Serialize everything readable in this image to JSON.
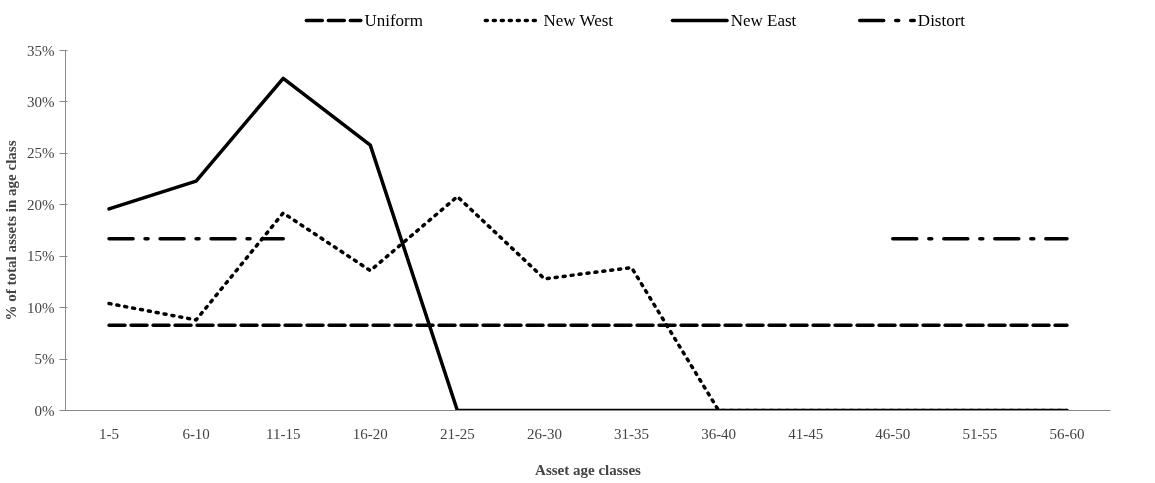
{
  "chart_data": {
    "type": "line",
    "xlabel": "Asset age classes",
    "ylabel": "% of total assets in age class",
    "categories": [
      "1-5",
      "6-10",
      "11-15",
      "16-20",
      "21-25",
      "26-30",
      "31-35",
      "36-40",
      "41-45",
      "46-50",
      "51-55",
      "56-60"
    ],
    "series": [
      {
        "name": "Uniform",
        "color": "#000000",
        "line_style": "dashed",
        "values": [
          8.3,
          8.3,
          8.3,
          8.3,
          8.3,
          8.3,
          8.3,
          8.3,
          8.3,
          8.3,
          8.3,
          8.3
        ]
      },
      {
        "name": "New West",
        "color": "#000000",
        "line_style": "dotted",
        "values": [
          10.4,
          8.8,
          19.2,
          13.6,
          20.8,
          12.8,
          13.9,
          0,
          0,
          0,
          0,
          0
        ]
      },
      {
        "name": "New East",
        "color": "#000000",
        "line_style": "solid",
        "values": [
          19.6,
          22.3,
          32.3,
          25.8,
          0,
          0,
          0,
          0,
          0,
          0,
          0,
          0
        ]
      },
      {
        "name": "Distort",
        "color": "#000000",
        "line_style": "dashdot",
        "values": [
          16.7,
          16.7,
          16.7,
          null,
          null,
          null,
          null,
          null,
          null,
          16.7,
          16.7,
          16.7
        ]
      }
    ],
    "ylim": [
      0,
      35
    ],
    "yticks": [
      {
        "value": 0,
        "label": "0%"
      },
      {
        "value": 5,
        "label": "5%"
      },
      {
        "value": 10,
        "label": "10%"
      },
      {
        "value": 15,
        "label": "15%"
      },
      {
        "value": 20,
        "label": "20%"
      },
      {
        "value": 25,
        "label": "25%"
      },
      {
        "value": 30,
        "label": "30%"
      },
      {
        "value": 35,
        "label": "35%"
      }
    ],
    "grid": false,
    "legend": "top",
    "marker": "none"
  }
}
